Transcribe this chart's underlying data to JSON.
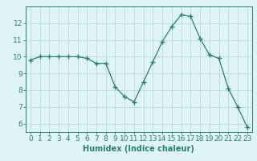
{
  "x": [
    0,
    1,
    2,
    3,
    4,
    5,
    6,
    7,
    8,
    9,
    10,
    11,
    12,
    13,
    14,
    15,
    16,
    17,
    18,
    19,
    20,
    21,
    22,
    23
  ],
  "y": [
    9.8,
    10.0,
    10.0,
    10.0,
    10.0,
    10.0,
    9.9,
    9.6,
    9.6,
    8.2,
    7.6,
    7.3,
    8.5,
    9.7,
    10.9,
    11.8,
    12.5,
    12.4,
    11.1,
    10.1,
    9.9,
    8.1,
    7.0,
    5.8
  ],
  "line_color": "#2e7d72",
  "marker": "+",
  "marker_size": 4,
  "background_color": "#dff5f5",
  "grid_color": "#c0dede",
  "axis_color": "#2e7d72",
  "xlabel": "Humidex (Indice chaleur)",
  "xlim": [
    -0.5,
    23.5
  ],
  "ylim": [
    5.5,
    13.0
  ],
  "yticks": [
    6,
    7,
    8,
    9,
    10,
    11,
    12
  ],
  "xticks": [
    0,
    1,
    2,
    3,
    4,
    5,
    6,
    7,
    8,
    9,
    10,
    11,
    12,
    13,
    14,
    15,
    16,
    17,
    18,
    19,
    20,
    21,
    22,
    23
  ],
  "xlabel_fontsize": 7,
  "tick_fontsize": 6.5
}
